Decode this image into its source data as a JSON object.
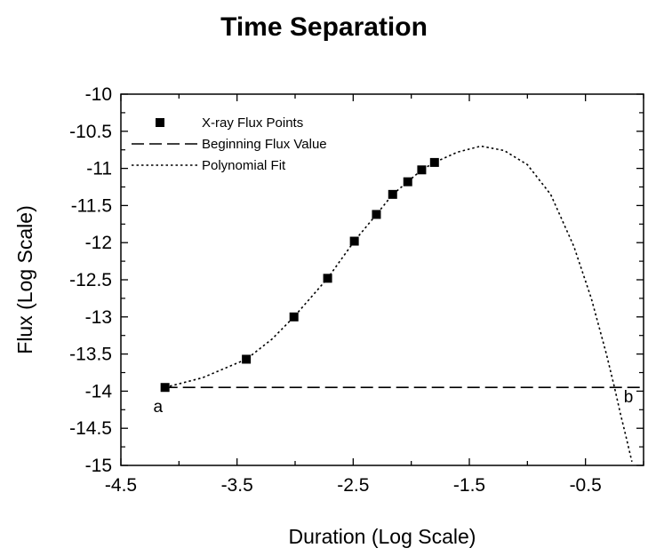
{
  "chart_data": {
    "type": "scatter",
    "title": "Time Separation",
    "xlabel": "Duration (Log Scale)",
    "ylabel": "Flux (Log Scale)",
    "xlim": [
      -4.5,
      0.0
    ],
    "ylim": [
      -15,
      -10
    ],
    "x_ticks": [
      "-4.5",
      "-3.5",
      "-2.5",
      "-1.5",
      "-0.5"
    ],
    "x_tick_values": [
      -4.5,
      -3.5,
      -2.5,
      -1.5,
      -0.5
    ],
    "y_ticks": [
      "-10",
      "-10.5",
      "-11",
      "-11.5",
      "-12",
      "-12.5",
      "-13",
      "-13.5",
      "-14",
      "-14.5",
      "-15"
    ],
    "y_tick_values": [
      -10,
      -10.5,
      -11,
      -11.5,
      -12,
      -12.5,
      -13,
      -13.5,
      -14,
      -14.5,
      -15
    ],
    "grid": false,
    "legend_position": "top-left",
    "series": [
      {
        "name": "X-ray Flux Points",
        "kind": "points",
        "x": [
          -4.12,
          -3.42,
          -3.01,
          -2.72,
          -2.49,
          -2.3,
          -2.16,
          -2.03,
          -1.91,
          -1.8
        ],
        "y": [
          -13.95,
          -13.57,
          -13.0,
          -12.48,
          -11.98,
          -11.62,
          -11.35,
          -11.18,
          -11.02,
          -10.92
        ]
      },
      {
        "name": "Beginning Flux Value",
        "kind": "dashed-line",
        "x": [
          -4.12,
          0.0
        ],
        "y": [
          -13.95,
          -13.95
        ]
      },
      {
        "name": "Polynomial Fit",
        "kind": "dotted-line",
        "x": [
          -4.12,
          -3.8,
          -3.42,
          -3.2,
          -3.01,
          -2.72,
          -2.49,
          -2.3,
          -2.16,
          -2.03,
          -1.91,
          -1.8,
          -1.6,
          -1.4,
          -1.2,
          -1.0,
          -0.8,
          -0.6,
          -0.45,
          -0.32,
          -0.25,
          -0.2,
          -0.15,
          -0.1
        ],
        "y": [
          -13.95,
          -13.82,
          -13.57,
          -13.3,
          -13.0,
          -12.48,
          -11.98,
          -11.62,
          -11.35,
          -11.18,
          -11.02,
          -10.92,
          -10.78,
          -10.7,
          -10.76,
          -10.95,
          -11.35,
          -12.05,
          -12.75,
          -13.5,
          -13.95,
          -14.3,
          -14.62,
          -14.95
        ]
      }
    ],
    "annotations": [
      {
        "text": "a",
        "x": -4.18,
        "y": -14.28
      },
      {
        "text": "b",
        "x": -0.13,
        "y": -14.15
      }
    ]
  }
}
